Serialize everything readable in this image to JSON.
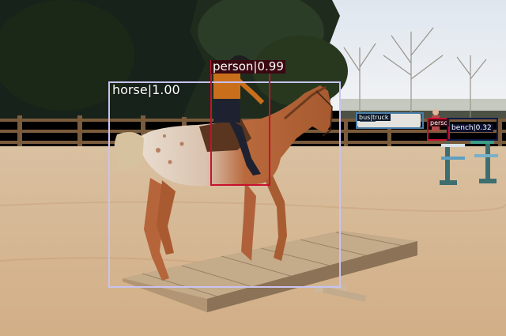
{
  "image": {
    "description_colors": {
      "sky": "#e6ecf2",
      "trees_dark": "#1f2d1c",
      "sand": "#d8b893",
      "horse_chestnut": "#b0643a",
      "platform_wood": "#b59a78"
    }
  },
  "detections": [
    {
      "label": "horse|1.00",
      "color": "#c8c3f0",
      "label_bg": "transparent"
    },
    {
      "label": "person|0.99",
      "color": "#c8102e",
      "label_bg": "#3a0810"
    },
    {
      "label": "perso",
      "color": "#c8102e",
      "label_bg": "#3a0810"
    },
    {
      "label": "bus|truck",
      "color": "#4a7ea8",
      "label_bg": "#0c1a2a"
    },
    {
      "label": "bench|0.32",
      "color": "#0c1a4a",
      "label_bg": "#0a1030"
    }
  ]
}
